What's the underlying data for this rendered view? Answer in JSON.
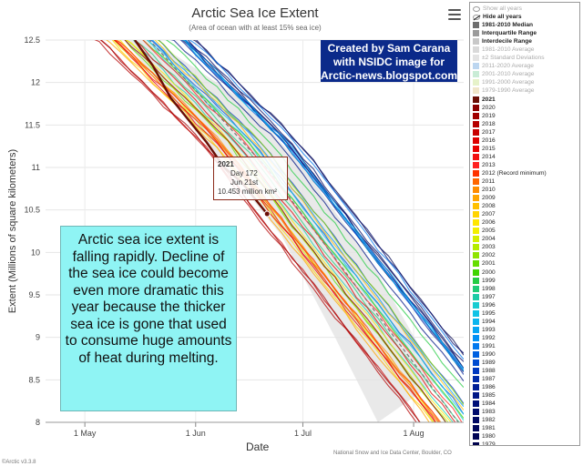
{
  "chart_data": {
    "type": "line",
    "title": "Arctic Sea Ice Extent",
    "subtitle": "(Area of ocean with at least 15% sea ice)",
    "xlabel": "Date",
    "ylabel": "Extent (Millions of square kilometers)",
    "x_tick_labels": [
      "1 May",
      "1 Jun",
      "1 Jul",
      "1 Aug"
    ],
    "y_tick_labels": [
      "8",
      "8.5",
      "9",
      "9.5",
      "10",
      "10.5",
      "11",
      "11.5",
      "12",
      "12.5"
    ],
    "ylim": [
      8,
      12.5
    ],
    "x_range": [
      "Apr 20",
      "Aug 15"
    ],
    "grid": true,
    "highlight_series": {
      "name": "2021",
      "color": "#6b0f06",
      "points": [
        {
          "x": "May 15",
          "y": 12.5
        },
        {
          "x": "May 20",
          "y": 12.2
        },
        {
          "x": "May 25",
          "y": 11.82
        },
        {
          "x": "May 30",
          "y": 11.56
        },
        {
          "x": "Jun 4",
          "y": 11.3
        },
        {
          "x": "Jun 9",
          "y": 11.0
        },
        {
          "x": "Jun 14",
          "y": 10.82
        },
        {
          "x": "Jun 21",
          "y": 10.453
        }
      ]
    },
    "band": {
      "name": "±2 Standard Deviations",
      "upper": [
        {
          "x": "May 20",
          "y": 12.5
        },
        {
          "x": "Jun 14",
          "y": 11.8
        },
        {
          "x": "Jul 1",
          "y": 11.0
        },
        {
          "x": "Jul 20",
          "y": 9.9
        },
        {
          "x": "Aug 8",
          "y": 8.5
        }
      ],
      "lower": [
        {
          "x": "May 12",
          "y": 12.5
        },
        {
          "x": "Jun 4",
          "y": 11.3
        },
        {
          "x": "Jun 25",
          "y": 10.2
        },
        {
          "x": "Jul 10",
          "y": 9.0
        },
        {
          "x": "Jul 22",
          "y": 8.0
        }
      ]
    },
    "series_colors": {
      "2020": "#8b0000",
      "2019": "#a00000",
      "2018": "#b50000",
      "2017": "#c80000",
      "2016": "#dd0000",
      "2015": "#e80000",
      "2014": "#f21010",
      "2013": "#ff2020",
      "2012": "#ff3300",
      "2011": "#ff6600",
      "2010": "#ff8c00",
      "2009": "#ffa500",
      "2008": "#ffc000",
      "2007": "#ffd400",
      "2006": "#ffe600",
      "2005": "#f3f000",
      "2004": "#d4ef00",
      "2003": "#b5ec00",
      "2002": "#8fe400",
      "2001": "#66dd00",
      "2000": "#3fd400",
      "1999": "#25cc44",
      "1998": "#1fcc77",
      "1997": "#1ccca6",
      "1996": "#19ccd1",
      "1995": "#11c3e6",
      "1994": "#0bb5ee",
      "1993": "#06a5f3",
      "1992": "#0391f5",
      "1991": "#0077ee",
      "1990": "#0060e0",
      "1989": "#004bd0",
      "1988": "#0038bf",
      "1987": "#002aa8",
      "1986": "#001f96",
      "1985": "#001786",
      "1984": "#000f78",
      "1983": "#000b6c",
      "1982": "#000863",
      "1981": "#00065c",
      "1980": "#000455",
      "1979": "#00034d"
    }
  },
  "header": {
    "menu_icon": "hamburger-menu-icon"
  },
  "credit": {
    "line1": "Created by Sam Carana",
    "line2": "with NSIDC image for",
    "line3": "Arctic-news.blogspot.com"
  },
  "note": {
    "text": "Arctic sea ice extent is falling rapidly. Decline of the sea ice could become even more dramatic this year because the thicker sea ice is gone that used to consume huge amounts of heat during melting."
  },
  "tooltip": {
    "year": "2021",
    "day": "Day 172",
    "date": "Jun 21st",
    "value": "10.453 million km²"
  },
  "footer": {
    "source": "National Snow and Ice Data Center, Boulder, CO",
    "version": "©Arctic v3.3.8"
  },
  "legend": {
    "items": [
      {
        "label": "Show all years",
        "kind": "eye",
        "muted": true
      },
      {
        "label": "Hide all years",
        "kind": "eye-crossed",
        "bold": true
      },
      {
        "label": "1981-2010 Median",
        "color": "#6d6d6d",
        "bold": true
      },
      {
        "label": "Interquartile Range",
        "color": "#9b9b9b",
        "bold": true
      },
      {
        "label": "Interdecile Range",
        "color": "#c8c8c8",
        "bold": true
      },
      {
        "label": "1981-2010 Average",
        "color": "#d9d9d9",
        "muted": true
      },
      {
        "label": "±2 Standard Deviations",
        "color": "#e3e3e3",
        "muted": true
      },
      {
        "label": "2011-2020 Average",
        "color": "#bcd6f0",
        "muted": true
      },
      {
        "label": "2001-2010 Average",
        "color": "#c9ecd6",
        "muted": true
      },
      {
        "label": "1991-2000 Average",
        "color": "#e6f2c9",
        "muted": true
      },
      {
        "label": "1979-1990 Average",
        "color": "#f0e6c9",
        "muted": true
      },
      {
        "label": "2021",
        "color": "#6b0f06",
        "bold": true
      },
      {
        "label": "2020",
        "color": "#8b0000"
      },
      {
        "label": "2019",
        "color": "#a00000"
      },
      {
        "label": "2018",
        "color": "#b50000"
      },
      {
        "label": "2017",
        "color": "#c80000"
      },
      {
        "label": "2016",
        "color": "#dd0000"
      },
      {
        "label": "2015",
        "color": "#e80000"
      },
      {
        "label": "2014",
        "color": "#f21010"
      },
      {
        "label": "2013",
        "color": "#ff2020"
      },
      {
        "label": "2012 (Record minimum)",
        "color": "#ff3300"
      },
      {
        "label": "2011",
        "color": "#ff6600"
      },
      {
        "label": "2010",
        "color": "#ff8c00"
      },
      {
        "label": "2009",
        "color": "#ffa500"
      },
      {
        "label": "2008",
        "color": "#ffc000"
      },
      {
        "label": "2007",
        "color": "#ffd400"
      },
      {
        "label": "2006",
        "color": "#ffe600"
      },
      {
        "label": "2005",
        "color": "#f3f000"
      },
      {
        "label": "2004",
        "color": "#d4ef00"
      },
      {
        "label": "2003",
        "color": "#b5ec00"
      },
      {
        "label": "2002",
        "color": "#8fe400"
      },
      {
        "label": "2001",
        "color": "#66dd00"
      },
      {
        "label": "2000",
        "color": "#3fd400"
      },
      {
        "label": "1999",
        "color": "#25cc44"
      },
      {
        "label": "1998",
        "color": "#1fcc77"
      },
      {
        "label": "1997",
        "color": "#1ccca6"
      },
      {
        "label": "1996",
        "color": "#19ccd1"
      },
      {
        "label": "1995",
        "color": "#11c3e6"
      },
      {
        "label": "1994",
        "color": "#0bb5ee"
      },
      {
        "label": "1993",
        "color": "#06a5f3"
      },
      {
        "label": "1992",
        "color": "#0391f5"
      },
      {
        "label": "1991",
        "color": "#0077ee"
      },
      {
        "label": "1990",
        "color": "#0060e0"
      },
      {
        "label": "1989",
        "color": "#004bd0"
      },
      {
        "label": "1988",
        "color": "#0038bf"
      },
      {
        "label": "1987",
        "color": "#002aa8"
      },
      {
        "label": "1986",
        "color": "#001f96"
      },
      {
        "label": "1985",
        "color": "#001786"
      },
      {
        "label": "1984",
        "color": "#000f78"
      },
      {
        "label": "1983",
        "color": "#000b6c"
      },
      {
        "label": "1982",
        "color": "#000863"
      },
      {
        "label": "1981",
        "color": "#00065c"
      },
      {
        "label": "1980",
        "color": "#000455"
      },
      {
        "label": "1979",
        "color": "#00034d"
      }
    ]
  }
}
